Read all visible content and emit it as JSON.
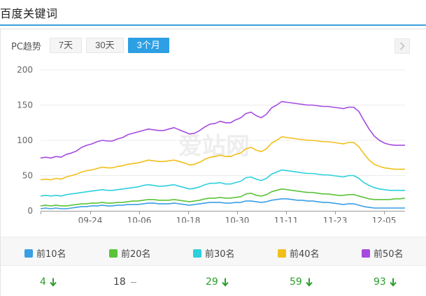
{
  "header": {
    "title": "百度关键词"
  },
  "toolbar": {
    "label": "PC趋势",
    "buttons": [
      {
        "label": "7天",
        "active": false
      },
      {
        "label": "30天",
        "active": false
      },
      {
        "label": "3个月",
        "active": true
      }
    ],
    "next_icon": "chevron-right-icon"
  },
  "chart_data": {
    "type": "line",
    "title": "",
    "xlabel": "",
    "ylabel": "",
    "ylim": [
      0,
      200
    ],
    "yticks": [
      0,
      50,
      100,
      150,
      200
    ],
    "xticks": [
      "09-24",
      "10-06",
      "10-18",
      "10-30",
      "11-11",
      "11-23",
      "12-05"
    ],
    "x_range": [
      "09-13",
      "12-09"
    ],
    "grid": "horizontal",
    "legend_position": "bottom",
    "watermark": "爱站网",
    "series": [
      {
        "name": "前10名",
        "color": "#3a9ee4",
        "values": [
          3,
          4,
          3,
          4,
          3,
          3,
          4,
          5,
          6,
          6,
          7,
          7,
          8,
          7,
          7,
          8,
          8,
          9,
          9,
          9,
          10,
          11,
          11,
          10,
          10,
          10,
          11,
          10,
          9,
          8,
          9,
          10,
          11,
          12,
          12,
          12,
          11,
          11,
          12,
          12,
          14,
          14,
          13,
          12,
          13,
          15,
          16,
          17,
          17,
          16,
          15,
          15,
          14,
          14,
          13,
          12,
          12,
          11,
          10,
          9,
          10,
          10,
          8,
          6,
          5,
          4,
          4,
          4,
          4,
          4,
          4,
          4
        ]
      },
      {
        "name": "前20名",
        "color": "#5ac438",
        "values": [
          7,
          8,
          7,
          8,
          7,
          7,
          8,
          9,
          10,
          10,
          11,
          11,
          12,
          11,
          11,
          12,
          12,
          13,
          14,
          14,
          15,
          16,
          16,
          15,
          15,
          15,
          16,
          15,
          14,
          13,
          14,
          15,
          17,
          18,
          18,
          19,
          18,
          18,
          19,
          20,
          24,
          25,
          22,
          21,
          23,
          27,
          29,
          31,
          30,
          29,
          28,
          27,
          26,
          26,
          25,
          24,
          24,
          23,
          22,
          22,
          23,
          23,
          21,
          19,
          17,
          16,
          16,
          16,
          16,
          17,
          17,
          18
        ]
      },
      {
        "name": "前30名",
        "color": "#2dcfdc",
        "values": [
          21,
          22,
          21,
          22,
          21,
          23,
          24,
          25,
          26,
          27,
          28,
          29,
          30,
          29,
          29,
          30,
          31,
          32,
          33,
          34,
          36,
          37,
          36,
          35,
          35,
          36,
          37,
          35,
          33,
          31,
          32,
          34,
          37,
          39,
          39,
          40,
          38,
          38,
          40,
          42,
          47,
          48,
          45,
          43,
          46,
          52,
          55,
          58,
          57,
          56,
          55,
          54,
          53,
          53,
          52,
          51,
          51,
          50,
          49,
          48,
          50,
          50,
          46,
          40,
          36,
          33,
          31,
          30,
          29,
          29,
          29,
          29
        ]
      },
      {
        "name": "前40名",
        "color": "#f2bf1a",
        "values": [
          44,
          45,
          44,
          46,
          45,
          48,
          50,
          52,
          55,
          57,
          58,
          60,
          62,
          61,
          61,
          63,
          64,
          66,
          67,
          68,
          70,
          72,
          71,
          70,
          70,
          71,
          72,
          70,
          68,
          65,
          66,
          69,
          73,
          76,
          77,
          79,
          77,
          77,
          80,
          82,
          88,
          90,
          86,
          84,
          88,
          96,
          100,
          105,
          104,
          103,
          102,
          101,
          100,
          100,
          99,
          98,
          98,
          97,
          96,
          95,
          97,
          97,
          91,
          81,
          72,
          66,
          63,
          61,
          60,
          59,
          59,
          59
        ]
      },
      {
        "name": "前50名",
        "color": "#a54be0",
        "values": [
          75,
          76,
          75,
          77,
          76,
          80,
          82,
          85,
          90,
          93,
          95,
          98,
          100,
          99,
          99,
          102,
          104,
          108,
          110,
          112,
          114,
          116,
          115,
          114,
          114,
          116,
          118,
          115,
          112,
          109,
          110,
          114,
          119,
          123,
          124,
          127,
          125,
          125,
          129,
          132,
          138,
          140,
          135,
          132,
          137,
          146,
          150,
          155,
          154,
          153,
          152,
          151,
          150,
          150,
          149,
          148,
          148,
          147,
          146,
          145,
          147,
          147,
          141,
          128,
          116,
          106,
          100,
          96,
          94,
          93,
          93,
          93
        ]
      }
    ]
  },
  "legend": {
    "items": [
      {
        "label": "前10名",
        "color": "#3a9ee4"
      },
      {
        "label": "前20名",
        "color": "#5ac438"
      },
      {
        "label": "前30名",
        "color": "#2dcfdc"
      },
      {
        "label": "前40名",
        "color": "#f2bf1a"
      },
      {
        "label": "前50名",
        "color": "#a54be0"
      }
    ]
  },
  "current": {
    "items": [
      {
        "value": "4",
        "trend": "down"
      },
      {
        "value": "18",
        "trend": "flat"
      },
      {
        "value": "29",
        "trend": "down"
      },
      {
        "value": "59",
        "trend": "down"
      },
      {
        "value": "93",
        "trend": "down"
      }
    ]
  }
}
